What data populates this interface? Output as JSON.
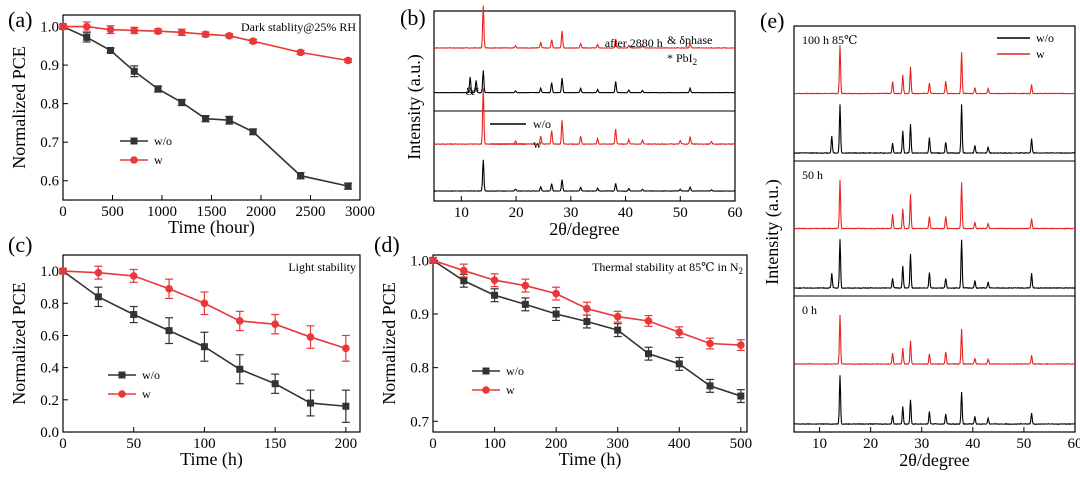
{
  "colors": {
    "wo": "#333333",
    "w": "#e8383a",
    "xrd_black": "#000000",
    "xrd_red": "#e8231f"
  },
  "chart_data": [
    {
      "id": "a",
      "type": "line",
      "panel_label": "(a)",
      "annotation": "Dark stablity@25% RH",
      "xlabel": "Time (hour)",
      "ylabel": "Normalized PCE",
      "xlim": [
        0,
        3000
      ],
      "ylim": [
        0.55,
        1.03
      ],
      "xticks": [
        0,
        500,
        1000,
        1500,
        2000,
        2500,
        3000
      ],
      "yticks": [
        0.6,
        0.7,
        0.8,
        0.9,
        1.0
      ],
      "yfmt": 1,
      "legend_position": "lower-left",
      "series": [
        {
          "name": "w/o",
          "marker": "square",
          "x": [
            0,
            240,
            480,
            720,
            960,
            1200,
            1440,
            1680,
            1920,
            2400,
            2880
          ],
          "y": [
            1.0,
            0.972,
            0.938,
            0.884,
            0.838,
            0.803,
            0.761,
            0.757,
            0.727,
            0.613,
            0.586
          ],
          "err": [
            0.005,
            0.012,
            0.006,
            0.014,
            0.008,
            0.008,
            0.008,
            0.01,
            0.007,
            0.008,
            0.008
          ]
        },
        {
          "name": "w",
          "marker": "circle",
          "x": [
            0,
            240,
            480,
            720,
            960,
            1200,
            1440,
            1680,
            1920,
            2400,
            2880
          ],
          "y": [
            1.0,
            1.0,
            0.992,
            0.99,
            0.988,
            0.985,
            0.98,
            0.976,
            0.962,
            0.933,
            0.912
          ],
          "err": [
            0.005,
            0.012,
            0.01,
            0.008,
            0.006,
            0.008,
            0.006,
            0.005,
            0.005,
            0.005,
            0.005
          ]
        }
      ]
    },
    {
      "id": "c",
      "type": "line",
      "panel_label": "(c)",
      "annotation": "Light stability",
      "xlabel": "Time (h)",
      "ylabel": "Normalized PCE",
      "xlim": [
        0,
        210
      ],
      "ylim": [
        0,
        1.1
      ],
      "xticks": [
        0,
        50,
        100,
        150,
        200
      ],
      "yticks": [
        0.0,
        0.2,
        0.4,
        0.6,
        0.8,
        1.0
      ],
      "yfmt": 1,
      "legend_position": "lower-left",
      "series": [
        {
          "name": "w/o",
          "marker": "square",
          "x": [
            0,
            25,
            50,
            75,
            100,
            125,
            150,
            175,
            200
          ],
          "y": [
            1.0,
            0.84,
            0.73,
            0.63,
            0.53,
            0.39,
            0.3,
            0.18,
            0.16
          ],
          "err": [
            0.01,
            0.06,
            0.05,
            0.08,
            0.09,
            0.09,
            0.06,
            0.08,
            0.1
          ]
        },
        {
          "name": "w",
          "marker": "circle",
          "x": [
            0,
            25,
            50,
            75,
            100,
            125,
            150,
            175,
            200
          ],
          "y": [
            1.0,
            0.99,
            0.97,
            0.89,
            0.8,
            0.69,
            0.67,
            0.59,
            0.52
          ],
          "err": [
            0.01,
            0.04,
            0.04,
            0.06,
            0.07,
            0.06,
            0.06,
            0.07,
            0.08
          ]
        }
      ]
    },
    {
      "id": "d",
      "type": "line",
      "panel_label": "(d)",
      "annotation": "Thermal stability at 85℃ in N",
      "annotation_sub": "2",
      "xlabel": "Time (h)",
      "ylabel": "Normalized PCE",
      "xlim": [
        0,
        510
      ],
      "ylim": [
        0.68,
        1.01
      ],
      "xticks": [
        0,
        100,
        200,
        300,
        400,
        500
      ],
      "yticks": [
        0.7,
        0.8,
        0.9,
        1.0
      ],
      "yfmt": 1,
      "legend_position": "lower-left",
      "series": [
        {
          "name": "w/o",
          "marker": "square",
          "x": [
            0,
            50,
            100,
            150,
            200,
            250,
            300,
            350,
            400,
            450,
            500
          ],
          "y": [
            1.0,
            0.962,
            0.935,
            0.918,
            0.9,
            0.886,
            0.87,
            0.826,
            0.807,
            0.766,
            0.747
          ],
          "err": [
            0.005,
            0.012,
            0.012,
            0.012,
            0.012,
            0.012,
            0.012,
            0.012,
            0.012,
            0.012,
            0.012
          ]
        },
        {
          "name": "w",
          "marker": "circle",
          "x": [
            0,
            50,
            100,
            150,
            200,
            250,
            300,
            350,
            400,
            450,
            500
          ],
          "y": [
            1.0,
            0.981,
            0.963,
            0.953,
            0.938,
            0.91,
            0.895,
            0.887,
            0.866,
            0.845,
            0.842
          ],
          "err": [
            0.005,
            0.012,
            0.012,
            0.012,
            0.012,
            0.012,
            0.01,
            0.01,
            0.01,
            0.01,
            0.01
          ]
        }
      ]
    },
    {
      "id": "b",
      "type": "line",
      "panel_label": "(b)",
      "xlabel": "2θ/degree",
      "ylabel": "Intensity (a.u.)",
      "xlim": [
        5,
        60
      ],
      "xticks": [
        10,
        20,
        30,
        40,
        50,
        60
      ],
      "ylim": [
        0,
        4.25
      ],
      "annotation_top": "after 2880 h",
      "phase_notes": [
        "& δphase",
        "* PbI"
      ],
      "phase_sub": "2",
      "peak_marks": [
        {
          "x": 11.6,
          "text": "&"
        },
        {
          "x": 12.7,
          "text": "*"
        }
      ],
      "legend_position": "center-left",
      "series": [
        {
          "name": "w/o",
          "color": "black",
          "offset": 0,
          "height": 0.7,
          "peaks": [
            [
              14.0,
              1.0
            ],
            [
              19.9,
              0.06
            ],
            [
              24.5,
              0.14
            ],
            [
              26.5,
              0.24
            ],
            [
              28.4,
              0.36
            ],
            [
              31.8,
              0.12
            ],
            [
              34.9,
              0.09
            ],
            [
              38.2,
              0.24
            ],
            [
              40.6,
              0.08
            ],
            [
              43.1,
              0.06
            ],
            [
              50.0,
              0.06
            ],
            [
              51.8,
              0.12
            ],
            [
              55.7,
              0.04
            ]
          ]
        },
        {
          "name": "w",
          "color": "red",
          "offset": 1.05,
          "height": 1.25,
          "peaks": [
            [
              14.0,
              1.0
            ],
            [
              19.9,
              0.06
            ],
            [
              24.5,
              0.14
            ],
            [
              26.5,
              0.24
            ],
            [
              28.4,
              0.43
            ],
            [
              31.8,
              0.14
            ],
            [
              34.9,
              0.1
            ],
            [
              38.2,
              0.27
            ],
            [
              40.6,
              0.08
            ],
            [
              43.1,
              0.07
            ],
            [
              50.0,
              0.06
            ],
            [
              51.8,
              0.13
            ],
            [
              55.7,
              0.04
            ]
          ]
        },
        {
          "name": "w/o",
          "color": "black",
          "offset": 2.2,
          "height": 0.5,
          "peaks": [
            [
              11.6,
              0.7
            ],
            [
              12.7,
              0.55
            ],
            [
              14.0,
              1.0
            ],
            [
              19.9,
              0.08
            ],
            [
              24.5,
              0.2
            ],
            [
              26.5,
              0.45
            ],
            [
              28.4,
              0.65
            ],
            [
              31.8,
              0.2
            ],
            [
              34.9,
              0.14
            ],
            [
              38.2,
              0.5
            ],
            [
              40.6,
              0.12
            ],
            [
              43.1,
              0.1
            ],
            [
              51.8,
              0.2
            ]
          ]
        },
        {
          "name": "w",
          "color": "red",
          "offset": 3.2,
          "height": 0.95,
          "peaks": [
            [
              14.0,
              1.0
            ],
            [
              19.9,
              0.05
            ],
            [
              24.5,
              0.13
            ],
            [
              26.5,
              0.2
            ],
            [
              28.4,
              0.4
            ],
            [
              31.8,
              0.1
            ],
            [
              34.9,
              0.08
            ],
            [
              38.2,
              0.22
            ],
            [
              40.6,
              0.06
            ],
            [
              43.1,
              0.05
            ],
            [
              51.8,
              0.1
            ]
          ]
        }
      ]
    },
    {
      "id": "e",
      "type": "line",
      "panel_label": "(e)",
      "xlabel": "2θ/degree",
      "ylabel": "Intensity (a.u.)",
      "xlim": [
        5,
        60
      ],
      "xticks": [
        10,
        20,
        30,
        40,
        50,
        60
      ],
      "legend_position": "top-right",
      "groups": [
        {
          "label": "100 h 85℃",
          "traces": [
            {
              "name": "w",
              "color": "red",
              "peaks": [
                [
                  14.0,
                  1.0
                ],
                [
                  24.3,
                  0.25
                ],
                [
                  26.3,
                  0.38
                ],
                [
                  27.8,
                  0.55
                ],
                [
                  31.5,
                  0.22
                ],
                [
                  34.7,
                  0.25
                ],
                [
                  37.8,
                  0.85
                ],
                [
                  40.4,
                  0.12
                ],
                [
                  43.0,
                  0.1
                ],
                [
                  51.5,
                  0.18
                ]
              ]
            },
            {
              "name": "w/o",
              "color": "black",
              "peaks": [
                [
                  12.4,
                  0.35
                ],
                [
                  14.0,
                  1.0
                ],
                [
                  24.3,
                  0.2
                ],
                [
                  26.3,
                  0.45
                ],
                [
                  27.8,
                  0.6
                ],
                [
                  31.5,
                  0.32
                ],
                [
                  34.7,
                  0.22
                ],
                [
                  37.8,
                  1.0
                ],
                [
                  40.4,
                  0.15
                ],
                [
                  43.0,
                  0.12
                ],
                [
                  51.5,
                  0.3
                ]
              ]
            }
          ]
        },
        {
          "label": "50 h",
          "traces": [
            {
              "name": "w",
              "color": "red",
              "peaks": [
                [
                  14.0,
                  1.0
                ],
                [
                  24.3,
                  0.3
                ],
                [
                  26.3,
                  0.4
                ],
                [
                  27.8,
                  0.7
                ],
                [
                  31.5,
                  0.25
                ],
                [
                  34.7,
                  0.25
                ],
                [
                  37.8,
                  0.95
                ],
                [
                  40.4,
                  0.13
                ],
                [
                  43.0,
                  0.1
                ],
                [
                  51.5,
                  0.2
                ]
              ]
            },
            {
              "name": "w/o",
              "color": "black",
              "peaks": [
                [
                  12.4,
                  0.3
                ],
                [
                  14.0,
                  1.0
                ],
                [
                  24.3,
                  0.2
                ],
                [
                  26.3,
                  0.45
                ],
                [
                  27.8,
                  0.7
                ],
                [
                  31.5,
                  0.32
                ],
                [
                  34.7,
                  0.2
                ],
                [
                  37.8,
                  1.0
                ],
                [
                  40.4,
                  0.15
                ],
                [
                  43.0,
                  0.12
                ],
                [
                  51.5,
                  0.3
                ]
              ]
            }
          ]
        },
        {
          "label": "0 h",
          "traces": [
            {
              "name": "w",
              "color": "red",
              "peaks": [
                [
                  14.0,
                  1.0
                ],
                [
                  24.3,
                  0.22
                ],
                [
                  26.3,
                  0.32
                ],
                [
                  27.8,
                  0.48
                ],
                [
                  31.5,
                  0.2
                ],
                [
                  34.7,
                  0.25
                ],
                [
                  37.8,
                  0.72
                ],
                [
                  40.4,
                  0.12
                ],
                [
                  43.0,
                  0.1
                ],
                [
                  51.5,
                  0.18
                ]
              ]
            },
            {
              "name": "w/o",
              "color": "black",
              "peaks": [
                [
                  14.0,
                  1.0
                ],
                [
                  24.3,
                  0.18
                ],
                [
                  26.3,
                  0.35
                ],
                [
                  27.8,
                  0.5
                ],
                [
                  31.5,
                  0.25
                ],
                [
                  34.7,
                  0.2
                ],
                [
                  37.8,
                  0.65
                ],
                [
                  40.4,
                  0.15
                ],
                [
                  43.0,
                  0.12
                ],
                [
                  51.5,
                  0.22
                ]
              ]
            }
          ]
        }
      ]
    }
  ]
}
